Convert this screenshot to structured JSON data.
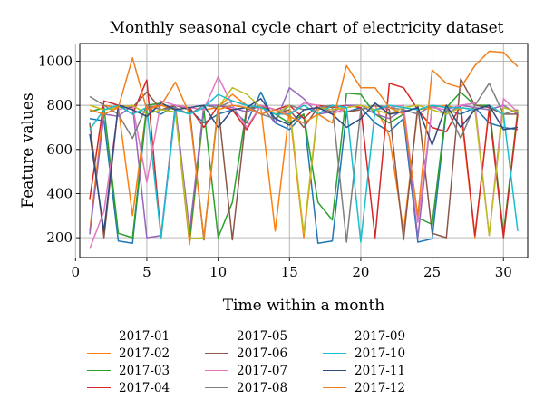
{
  "chart_data": {
    "type": "line",
    "title": "Monthly seasonal cycle chart of electricity dataset",
    "xlabel": "Time within a month",
    "ylabel": "Feature values",
    "xlim": [
      0.3,
      31.7
    ],
    "ylim": [
      110,
      1080
    ],
    "xticks": [
      "0",
      "5",
      "10",
      "15",
      "20",
      "25",
      "30"
    ],
    "yticks": [
      "200",
      "400",
      "600",
      "800",
      "1000"
    ],
    "grid": true,
    "legend_position": "below",
    "x": [
      1,
      2,
      3,
      4,
      5,
      6,
      7,
      8,
      9,
      10,
      11,
      12,
      13,
      14,
      15,
      16,
      17,
      18,
      19,
      20,
      21,
      22,
      23,
      24,
      25,
      26,
      27,
      28,
      29,
      30,
      31
    ],
    "series": [
      {
        "name": "2017-01",
        "color": "#1f77b4",
        "values": [
          740,
          730,
          185,
          175,
          790,
          760,
          800,
          780,
          720,
          760,
          780,
          720,
          860,
          720,
          690,
          760,
          175,
          185,
          770,
          790,
          720,
          680,
          740,
          180,
          195,
          780,
          760,
          790,
          720,
          700,
          690
        ]
      },
      {
        "name": "2017-02",
        "color": "#ff7f0e",
        "values": [
          230,
          800,
          790,
          300,
          790,
          800,
          780,
          170,
          780,
          790,
          850,
          800,
          790,
          230,
          780,
          200,
          780,
          800,
          770,
          780,
          800,
          660,
          230,
          780,
          790,
          800,
          780,
          200,
          790,
          210,
          780
        ]
      },
      {
        "name": "2017-03",
        "color": "#2ca02c",
        "values": [
          770,
          790,
          220,
          200,
          800,
          810,
          780,
          190,
          780,
          200,
          360,
          790,
          790,
          760,
          720,
          760,
          360,
          280,
          855,
          850,
          760,
          720,
          760,
          290,
          260,
          790,
          860,
          800,
          800,
          220,
          770
        ]
      },
      {
        "name": "2017-04",
        "color": "#d62728",
        "values": [
          375,
          820,
          800,
          760,
          915,
          200,
          800,
          790,
          700,
          800,
          780,
          690,
          800,
          780,
          800,
          740,
          800,
          790,
          800,
          790,
          200,
          900,
          880,
          780,
          700,
          680,
          800,
          210,
          780,
          200,
          760
        ]
      },
      {
        "name": "2017-05",
        "color": "#9467bd",
        "values": [
          215,
          760,
          750,
          800,
          200,
          210,
          800,
          230,
          800,
          800,
          790,
          770,
          800,
          720,
          880,
          830,
          760,
          770,
          800,
          800,
          760,
          740,
          780,
          200,
          800,
          760,
          800,
          790,
          780,
          800,
          760
        ]
      },
      {
        "name": "2017-06",
        "color": "#8c564b",
        "values": [
          720,
          200,
          800,
          790,
          860,
          780,
          800,
          780,
          190,
          800,
          190,
          780,
          800,
          760,
          780,
          700,
          790,
          770,
          770,
          780,
          800,
          780,
          190,
          800,
          220,
          200,
          920,
          800,
          790,
          760,
          760
        ]
      },
      {
        "name": "2017-07",
        "color": "#e377c2",
        "values": [
          150,
          320,
          780,
          800,
          450,
          820,
          800,
          790,
          780,
          930,
          800,
          700,
          800,
          780,
          760,
          810,
          800,
          760,
          790,
          800,
          780,
          790,
          800,
          270,
          790,
          780,
          800,
          810,
          210,
          830,
          770
        ]
      },
      {
        "name": "2017-08",
        "color": "#7f7f7f",
        "values": [
          840,
          800,
          760,
          650,
          800,
          780,
          790,
          760,
          800,
          790,
          820,
          800,
          760,
          740,
          800,
          780,
          790,
          800,
          180,
          780,
          800,
          790,
          780,
          760,
          800,
          790,
          650,
          800,
          900,
          760,
          780
        ]
      },
      {
        "name": "2017-09",
        "color": "#bcbd22",
        "values": [
          800,
          780,
          790,
          800,
          760,
          780,
          770,
          195,
          200,
          790,
          880,
          850,
          790,
          760,
          800,
          220,
          790,
          780,
          790,
          800,
          780,
          760,
          790,
          800,
          780,
          760,
          790,
          780,
          210,
          790,
          770
        ]
      },
      {
        "name": "2017-10",
        "color": "#17becf",
        "values": [
          690,
          780,
          800,
          760,
          790,
          200,
          780,
          760,
          790,
          850,
          820,
          800,
          790,
          760,
          760,
          800,
          760,
          800,
          790,
          180,
          780,
          800,
          790,
          780,
          800,
          790,
          790,
          780,
          800,
          760,
          230
        ]
      },
      {
        "name": "2017-11",
        "color": "#2f4b7c",
        "values": [
          670,
          230,
          800,
          780,
          750,
          810,
          780,
          790,
          800,
          700,
          780,
          790,
          830,
          740,
          710,
          780,
          790,
          760,
          700,
          740,
          810,
          760,
          770,
          790,
          620,
          800,
          700,
          780,
          800,
          690,
          700
        ]
      },
      {
        "name": "2017-12",
        "color": "#f07f1e",
        "values": [
          780,
          760,
          790,
          1015,
          780,
          800,
          905,
          760,
          200,
          780,
          800,
          790,
          760,
          780,
          750,
          720,
          760,
          720,
          980,
          880,
          880,
          790,
          760,
          300,
          960,
          900,
          880,
          980,
          1045,
          1040,
          975
        ]
      }
    ]
  }
}
